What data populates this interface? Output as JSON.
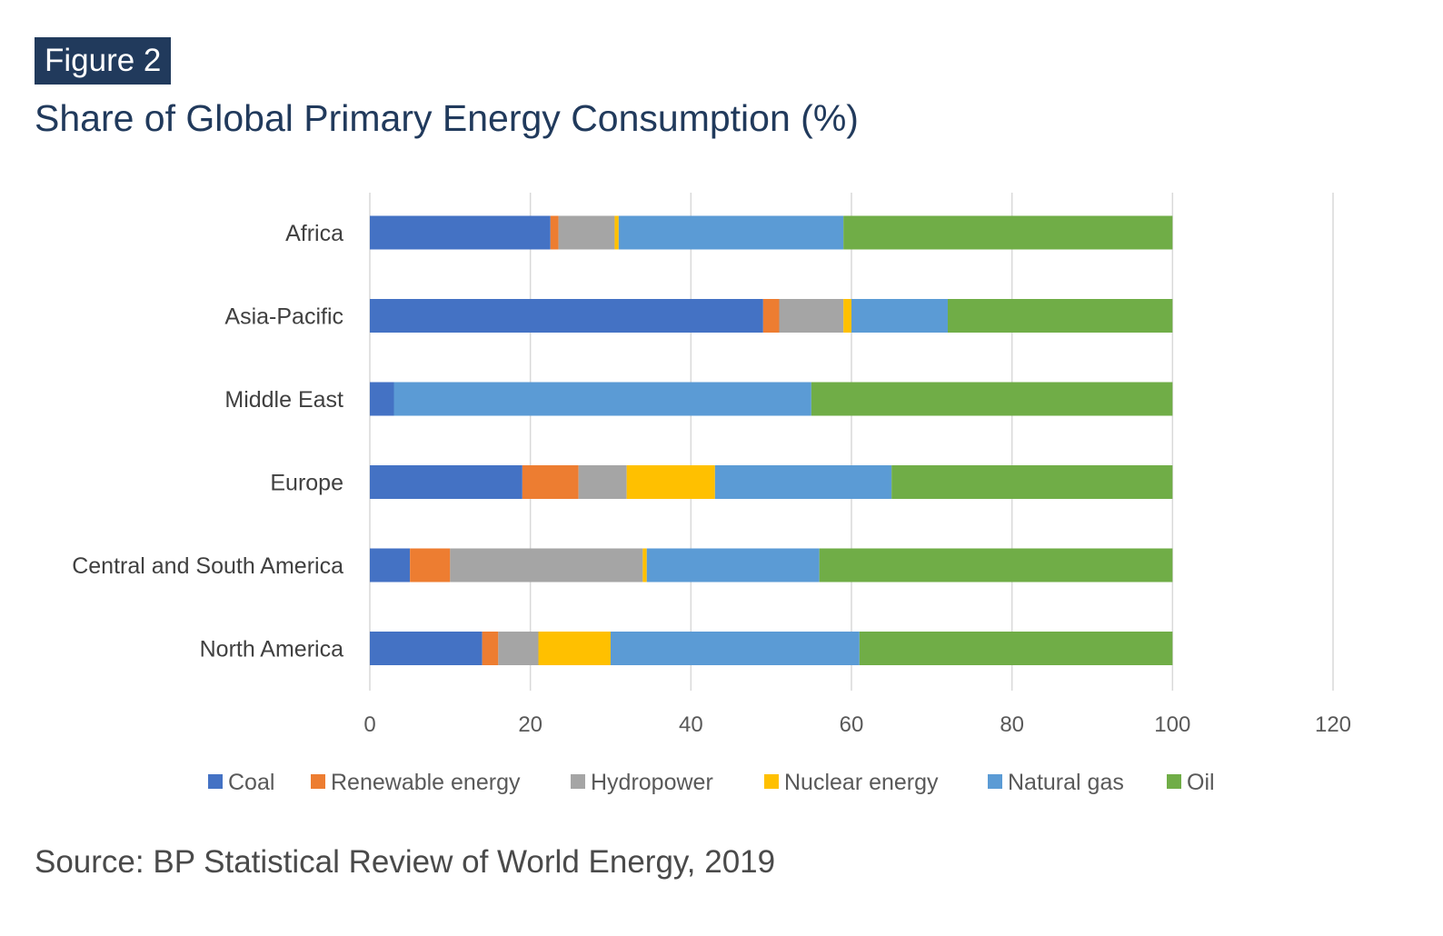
{
  "figure_label": "Figure 2",
  "title": "Share of Global Primary Energy Consumption (%)",
  "source": "Source: BP Statistical Review of World Energy, 2019",
  "chart_data": {
    "type": "bar",
    "orientation": "horizontal",
    "stacked": true,
    "categories": [
      "Africa",
      "Asia-Pacific",
      "Middle East",
      "Europe",
      "Central and South America",
      "North America"
    ],
    "series": [
      {
        "name": "Coal",
        "color": "#4472c4",
        "values": [
          22.5,
          49,
          3,
          19,
          5,
          14
        ]
      },
      {
        "name": "Renewable energy",
        "color": "#ed7d31",
        "values": [
          1,
          2,
          0,
          7,
          5,
          2
        ]
      },
      {
        "name": "Hydropower",
        "color": "#a5a5a5",
        "values": [
          7,
          8,
          0,
          6,
          24,
          5
        ]
      },
      {
        "name": "Nuclear energy",
        "color": "#ffc000",
        "values": [
          0.5,
          1,
          0,
          11,
          0.5,
          9
        ]
      },
      {
        "name": "Natural gas",
        "color": "#5b9bd5",
        "values": [
          28,
          12,
          52,
          22,
          21.5,
          31
        ]
      },
      {
        "name": "Oil",
        "color": "#70ad47",
        "values": [
          41,
          28,
          45,
          35,
          44,
          39
        ]
      }
    ],
    "xlim": [
      0,
      120
    ],
    "xticks": [
      0,
      20,
      40,
      60,
      80,
      100,
      120
    ],
    "grid": true,
    "legend": "bottom"
  }
}
